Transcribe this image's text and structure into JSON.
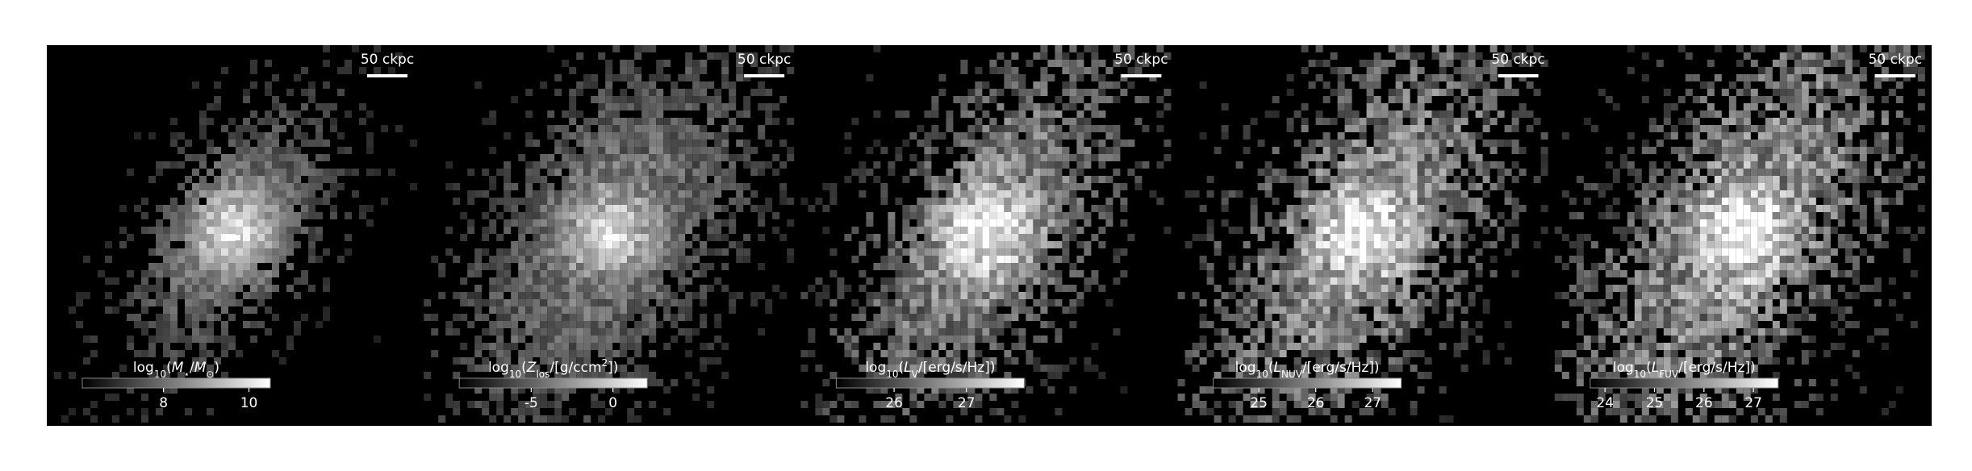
{
  "chart_data": [
    {
      "type": "image",
      "scale_bar": "50 ckpc",
      "colorbar_label": [
        {
          "text": "log"
        },
        {
          "text": "10",
          "sub": true
        },
        {
          "text": "("
        },
        {
          "text": "M",
          "italic": true
        },
        {
          "text": "⋆",
          "sub": true
        },
        {
          "text": "/"
        },
        {
          "text": "M",
          "italic": true
        },
        {
          "text": "⊙",
          "sub": true
        },
        {
          "text": ")"
        }
      ],
      "clim": [
        6.1,
        10.5
      ],
      "cticks": [
        8,
        10
      ]
    },
    {
      "type": "image",
      "scale_bar": "50 ckpc",
      "colorbar_label": [
        {
          "text": "log"
        },
        {
          "text": "10",
          "sub": true
        },
        {
          "text": "("
        },
        {
          "text": "Z",
          "italic": true
        },
        {
          "text": "los",
          "sub": true
        },
        {
          "text": "/[g/ccm"
        },
        {
          "text": "2",
          "sup": true
        },
        {
          "text": "])"
        }
      ],
      "clim": [
        -9.4,
        2.1
      ],
      "cticks": [
        -5,
        0
      ]
    },
    {
      "type": "image",
      "scale_bar": "50 ckpc",
      "colorbar_label": [
        {
          "text": "log"
        },
        {
          "text": "10",
          "sub": true
        },
        {
          "text": "("
        },
        {
          "text": "L",
          "italic": true
        },
        {
          "text": "V",
          "sub": true
        },
        {
          "text": "/[erg/s/Hz])"
        }
      ],
      "clim": [
        25.2,
        27.8
      ],
      "cticks": [
        26,
        27
      ]
    },
    {
      "type": "image",
      "scale_bar": "50 ckpc",
      "colorbar_label": [
        {
          "text": "log"
        },
        {
          "text": "10",
          "sub": true
        },
        {
          "text": "("
        },
        {
          "text": "L",
          "italic": true
        },
        {
          "text": "NUV",
          "sub": true
        },
        {
          "text": "/[erg/s/Hz])"
        }
      ],
      "clim": [
        24.2,
        27.5
      ],
      "cticks": [
        25,
        26,
        27
      ]
    },
    {
      "type": "image",
      "scale_bar": "50 ckpc",
      "colorbar_label": [
        {
          "text": "log"
        },
        {
          "text": "10",
          "sub": true
        },
        {
          "text": "("
        },
        {
          "text": "L",
          "italic": true
        },
        {
          "text": "FUV",
          "sub": true
        },
        {
          "text": "/[erg/s/Hz])"
        }
      ],
      "clim": [
        23.7,
        27.5
      ],
      "cticks": [
        24,
        25,
        26,
        27
      ]
    }
  ]
}
